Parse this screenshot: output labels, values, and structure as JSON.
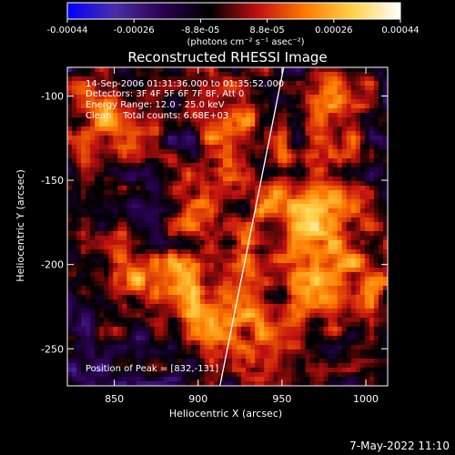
{
  "colorbar": {
    "ticks": [
      "-0.00044",
      "-0.00026",
      "-8.8e-05",
      "8.8e-05",
      "0.00026",
      "0.00044"
    ],
    "unit_label": "(photons cm⁻² s⁻¹ asec⁻²)",
    "range": [
      -0.00044,
      0.00044
    ],
    "colormap": [
      "#0000ff",
      "#4a2fa8",
      "#2b0050",
      "#000000",
      "#c01010",
      "#ff7a00",
      "#ffd24a",
      "#ffffff"
    ]
  },
  "chart_data": {
    "type": "heatmap",
    "title": "Reconstructed RHESSI Image",
    "xlabel": "Heliocentric X (arcsec)",
    "ylabel": "Heliocentric Y (arcsec)",
    "xlim": [
      822,
      1013
    ],
    "ylim": [
      -272,
      -83
    ],
    "xticks": [
      850,
      900,
      950,
      1000
    ],
    "yticks": [
      -100,
      -150,
      -200,
      -250
    ],
    "annotations": [
      "14-Sep-2006 01:31:36.000 to 01:35:52.000",
      "Detectors: 3F 4F 5F 6F 7F 8F, Att 0",
      "Energy Range: 12.0 - 25.0 keV",
      "Clean    Total counts: 6.68E+03"
    ],
    "peak_label": "Position of Peak = [832,-131]",
    "peak": [
      832,
      -131
    ],
    "limb_line": [
      [
        913,
        -272
      ],
      [
        951,
        -83
      ]
    ]
  },
  "footer": {
    "timestamp": "7-May-2022 11:10"
  }
}
